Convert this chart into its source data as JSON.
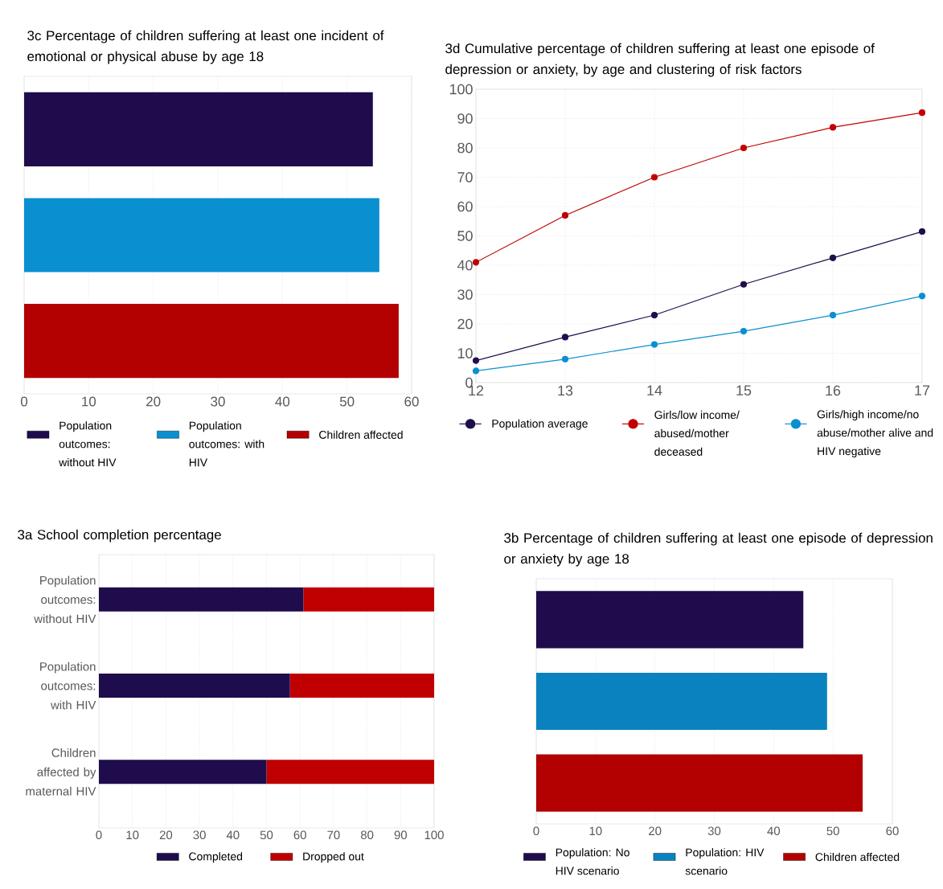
{
  "chart_data": [
    {
      "type": "bar",
      "orientation": "horizontal",
      "title": "3c Percentage of children suffering at least one incident of emotional or physical abuse by age 18",
      "categories": [
        null,
        null,
        null
      ],
      "series": [
        {
          "name": "Population outcomes: without HIV",
          "color": "#1f0c4c",
          "values": [
            54,
            null,
            null
          ]
        },
        {
          "name": "Population outcomes: with HIV",
          "color": "#0a8fd0",
          "values": [
            null,
            55,
            null
          ]
        },
        {
          "name": "Children affected",
          "color": "#b30000",
          "values": [
            null,
            null,
            58
          ]
        }
      ],
      "xlim": [
        0,
        60
      ],
      "xticks": [
        0,
        10,
        20,
        30,
        40,
        50,
        60
      ],
      "grid": "x",
      "legend": "bottom"
    },
    {
      "type": "line",
      "title": "3d Cumulative percentage of children suffering at least one episode of depression or anxiety, by age and clustering of risk factors",
      "x": [
        12,
        13,
        14,
        15,
        16,
        17
      ],
      "series": [
        {
          "name": "Population average",
          "color": "#1f0c4c",
          "values": [
            7.5,
            15.5,
            23,
            33.5,
            42.5,
            51.5
          ]
        },
        {
          "name": "Girls/low income/ abused/mother deceased",
          "color": "#c00000",
          "values": [
            41,
            57,
            70,
            80,
            87,
            92
          ]
        },
        {
          "name": "Girls/high income/no abuse/mother alive and HIV negative",
          "color": "#0a8fd0",
          "values": [
            4,
            8,
            13,
            17.5,
            23,
            29.5
          ]
        }
      ],
      "xlim": [
        12,
        17
      ],
      "ylim": [
        0,
        100
      ],
      "xticks": [
        12,
        13,
        14,
        15,
        16,
        17
      ],
      "yticks": [
        0,
        10,
        20,
        30,
        40,
        50,
        60,
        70,
        80,
        90,
        100
      ],
      "grid": true,
      "marker": "circle",
      "legend": "bottom"
    },
    {
      "type": "bar",
      "orientation": "horizontal",
      "stacked": true,
      "title": "3a School completion percentage",
      "categories": [
        "Population outcomes: without HIV",
        "Population outcomes: with HIV",
        "Children affected by maternal HIV"
      ],
      "series": [
        {
          "name": "Completed",
          "color": "#1f0c4c",
          "values": [
            61,
            57,
            50
          ]
        },
        {
          "name": "Dropped out",
          "color": "#c00000",
          "values": [
            39,
            43,
            50
          ]
        }
      ],
      "xlim": [
        0,
        100
      ],
      "xticks": [
        0,
        10,
        20,
        30,
        40,
        50,
        60,
        70,
        80,
        90,
        100
      ],
      "grid": "x",
      "legend": "bottom"
    },
    {
      "type": "bar",
      "orientation": "horizontal",
      "title": "3b Percentage of children suffering at least one episode of depression or anxiety by age 18",
      "categories": [
        null,
        null,
        null
      ],
      "series": [
        {
          "name": "Population: No HIV scenario",
          "color": "#1f0c4c",
          "values": [
            45,
            null,
            null
          ]
        },
        {
          "name": "Population: HIV scenario",
          "color": "#0a82c0",
          "values": [
            null,
            49,
            null
          ]
        },
        {
          "name": "Children affected",
          "color": "#b30000",
          "values": [
            null,
            null,
            55
          ]
        }
      ],
      "xlim": [
        0,
        60
      ],
      "xticks": [
        0,
        10,
        20,
        30,
        40,
        50,
        60
      ],
      "grid": "x",
      "legend": "bottom"
    }
  ]
}
